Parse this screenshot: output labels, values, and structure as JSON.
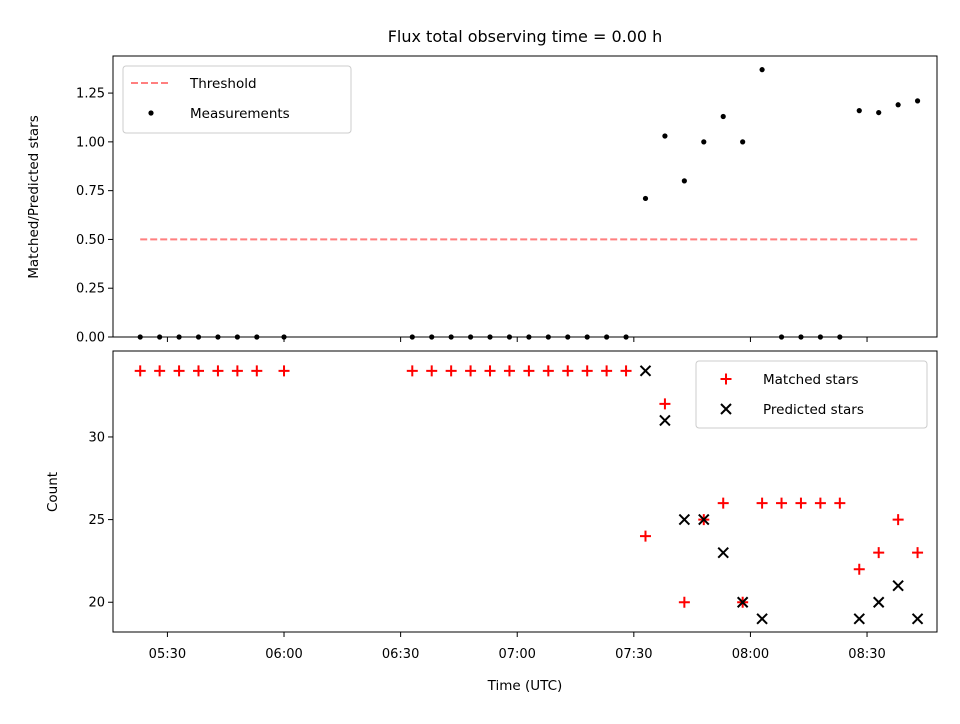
{
  "chart_data": [
    {
      "type": "scatter",
      "panel": "top",
      "title": "Flux total observing time = 0.00 h",
      "xlabel": "",
      "ylabel": "Matched/Predicted stars",
      "xlim": [
        "05:16",
        "08:48"
      ],
      "ylim": [
        0,
        1.44
      ],
      "y_ticks": [
        0.0,
        0.25,
        0.5,
        0.75,
        1.0,
        1.25
      ],
      "y_tick_labels": [
        "0.00",
        "0.25",
        "0.50",
        "0.75",
        "1.00",
        "1.25"
      ],
      "x_ticks": [
        "05:30",
        "06:00",
        "06:30",
        "07:00",
        "07:30",
        "08:00",
        "08:30"
      ],
      "show_x_tick_labels": false,
      "grid": false,
      "legend_position": "upper-left",
      "series": [
        {
          "name": "Threshold",
          "kind": "line",
          "style": "dashed",
          "color": "#ff7f7f",
          "points": [
            {
              "x": "05:23",
              "y": 0.5
            },
            {
              "x": "08:43",
              "y": 0.5
            }
          ]
        },
        {
          "name": "Measurements",
          "kind": "scatter",
          "marker": "dot",
          "color": "#000000",
          "points": [
            {
              "x": "05:23",
              "y": 0.0
            },
            {
              "x": "05:28",
              "y": 0.0
            },
            {
              "x": "05:33",
              "y": 0.0
            },
            {
              "x": "05:38",
              "y": 0.0
            },
            {
              "x": "05:43",
              "y": 0.0
            },
            {
              "x": "05:48",
              "y": 0.0
            },
            {
              "x": "05:53",
              "y": 0.0
            },
            {
              "x": "06:00",
              "y": 0.0
            },
            {
              "x": "06:33",
              "y": 0.0
            },
            {
              "x": "06:38",
              "y": 0.0
            },
            {
              "x": "06:43",
              "y": 0.0
            },
            {
              "x": "06:48",
              "y": 0.0
            },
            {
              "x": "06:53",
              "y": 0.0
            },
            {
              "x": "06:58",
              "y": 0.0
            },
            {
              "x": "07:03",
              "y": 0.0
            },
            {
              "x": "07:08",
              "y": 0.0
            },
            {
              "x": "07:13",
              "y": 0.0
            },
            {
              "x": "07:18",
              "y": 0.0
            },
            {
              "x": "07:23",
              "y": 0.0
            },
            {
              "x": "07:28",
              "y": 0.0
            },
            {
              "x": "07:33",
              "y": 0.71
            },
            {
              "x": "07:38",
              "y": 1.03
            },
            {
              "x": "07:43",
              "y": 0.8
            },
            {
              "x": "07:48",
              "y": 1.0
            },
            {
              "x": "07:53",
              "y": 1.13
            },
            {
              "x": "07:58",
              "y": 1.0
            },
            {
              "x": "08:03",
              "y": 1.37
            },
            {
              "x": "08:08",
              "y": 0.0
            },
            {
              "x": "08:13",
              "y": 0.0
            },
            {
              "x": "08:18",
              "y": 0.0
            },
            {
              "x": "08:23",
              "y": 0.0
            },
            {
              "x": "08:28",
              "y": 1.16
            },
            {
              "x": "08:33",
              "y": 1.15
            },
            {
              "x": "08:38",
              "y": 1.19
            },
            {
              "x": "08:43",
              "y": 1.21
            }
          ]
        }
      ]
    },
    {
      "type": "scatter",
      "panel": "bottom",
      "title": "",
      "xlabel": "Time (UTC)",
      "ylabel": "Count",
      "xlim": [
        "05:16",
        "08:48"
      ],
      "ylim": [
        18.2,
        35.2
      ],
      "y_ticks": [
        20,
        25,
        30
      ],
      "y_tick_labels": [
        "20",
        "25",
        "30"
      ],
      "x_ticks": [
        "05:30",
        "06:00",
        "06:30",
        "07:00",
        "07:30",
        "08:00",
        "08:30"
      ],
      "x_tick_labels": [
        "05:30",
        "06:00",
        "06:30",
        "07:00",
        "07:30",
        "08:00",
        "08:30"
      ],
      "grid": false,
      "legend_position": "upper-right",
      "series": [
        {
          "name": "Matched stars",
          "kind": "scatter",
          "marker": "plus",
          "color": "#ff0000",
          "points": [
            {
              "x": "05:23",
              "y": 34
            },
            {
              "x": "05:28",
              "y": 34
            },
            {
              "x": "05:33",
              "y": 34
            },
            {
              "x": "05:38",
              "y": 34
            },
            {
              "x": "05:43",
              "y": 34
            },
            {
              "x": "05:48",
              "y": 34
            },
            {
              "x": "05:53",
              "y": 34
            },
            {
              "x": "06:00",
              "y": 34
            },
            {
              "x": "06:33",
              "y": 34
            },
            {
              "x": "06:38",
              "y": 34
            },
            {
              "x": "06:43",
              "y": 34
            },
            {
              "x": "06:48",
              "y": 34
            },
            {
              "x": "06:53",
              "y": 34
            },
            {
              "x": "06:58",
              "y": 34
            },
            {
              "x": "07:03",
              "y": 34
            },
            {
              "x": "07:08",
              "y": 34
            },
            {
              "x": "07:13",
              "y": 34
            },
            {
              "x": "07:18",
              "y": 34
            },
            {
              "x": "07:23",
              "y": 34
            },
            {
              "x": "07:28",
              "y": 34
            },
            {
              "x": "07:33",
              "y": 24
            },
            {
              "x": "07:38",
              "y": 32
            },
            {
              "x": "07:43",
              "y": 20
            },
            {
              "x": "07:48",
              "y": 25
            },
            {
              "x": "07:53",
              "y": 26
            },
            {
              "x": "07:58",
              "y": 20
            },
            {
              "x": "08:03",
              "y": 26
            },
            {
              "x": "08:08",
              "y": 26
            },
            {
              "x": "08:13",
              "y": 26
            },
            {
              "x": "08:18",
              "y": 26
            },
            {
              "x": "08:23",
              "y": 26
            },
            {
              "x": "08:28",
              "y": 22
            },
            {
              "x": "08:33",
              "y": 23
            },
            {
              "x": "08:38",
              "y": 25
            },
            {
              "x": "08:43",
              "y": 23
            }
          ]
        },
        {
          "name": "Predicted stars",
          "kind": "scatter",
          "marker": "x",
          "color": "#000000",
          "points": [
            {
              "x": "07:33",
              "y": 34
            },
            {
              "x": "07:38",
              "y": 31
            },
            {
              "x": "07:43",
              "y": 25
            },
            {
              "x": "07:48",
              "y": 25
            },
            {
              "x": "07:53",
              "y": 23
            },
            {
              "x": "07:58",
              "y": 20
            },
            {
              "x": "08:03",
              "y": 19
            },
            {
              "x": "08:28",
              "y": 19
            },
            {
              "x": "08:33",
              "y": 20
            },
            {
              "x": "08:38",
              "y": 21
            },
            {
              "x": "08:43",
              "y": 19
            }
          ]
        }
      ]
    }
  ]
}
